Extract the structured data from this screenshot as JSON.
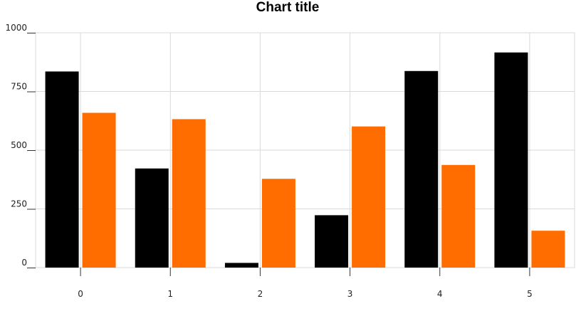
{
  "chart_data": {
    "type": "bar",
    "title": "Chart title",
    "xlabel": "",
    "ylabel": "",
    "categories": [
      "0",
      "1",
      "2",
      "3",
      "4",
      "5"
    ],
    "series": [
      {
        "values": [
          835,
          422,
          20,
          223,
          837,
          916
        ],
        "color": "#000000"
      },
      {
        "values": [
          659,
          632,
          378,
          601,
          437,
          157
        ],
        "color": "#ff6d00"
      }
    ],
    "ylim": [
      0,
      1000
    ],
    "yticks": [
      "0",
      "250",
      "500",
      "750",
      "1000"
    ],
    "grid": true,
    "legend": "none"
  }
}
